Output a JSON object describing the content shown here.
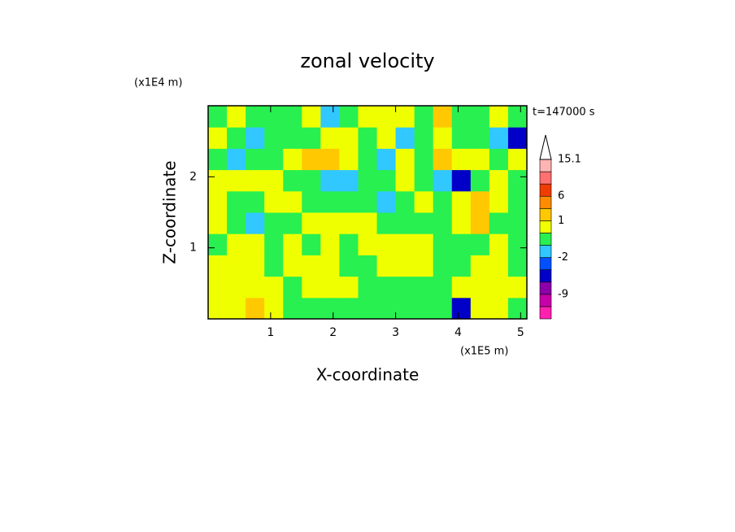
{
  "chart_data": {
    "type": "contour",
    "title": "zonal velocity",
    "x_label": "X-coordinate",
    "y_label": "Z-coordinate",
    "x_unit": "(x1E5 m)",
    "y_unit": "(x1E4 m)",
    "annotation": "t=147000 s",
    "xlim": [
      0,
      5.1
    ],
    "ylim": [
      0,
      3
    ],
    "xticks": [
      1,
      2,
      3,
      4,
      5
    ],
    "yticks": [
      1,
      2
    ],
    "field": {
      "x": [
        0.15,
        0.45,
        0.75,
        1.05,
        1.35,
        1.65,
        1.95,
        2.25,
        2.55,
        2.85,
        3.15,
        3.45,
        3.75,
        4.05,
        4.35,
        4.65,
        4.95
      ],
      "y": [
        0.15,
        0.45,
        0.75,
        1.05,
        1.35,
        1.65,
        1.95,
        2.25,
        2.55,
        2.85
      ],
      "values": [
        [
          0.5,
          0.5,
          1.5,
          0.5,
          -0.5,
          -0.5,
          -0.5,
          -0.5,
          -0.5,
          -0.5,
          -0.5,
          -0.5,
          -0.5,
          -4,
          0.5,
          0.5,
          -0.5
        ],
        [
          0.5,
          0.5,
          0.5,
          0.5,
          -0.5,
          0.5,
          0.5,
          0.5,
          -0.5,
          -0.5,
          -0.5,
          -0.5,
          -0.5,
          0.5,
          0.5,
          0.5,
          0.5
        ],
        [
          0.5,
          0.5,
          0.5,
          -0.5,
          0.5,
          0.5,
          0.5,
          -0.5,
          -0.5,
          0.5,
          0.5,
          0.5,
          -0.5,
          -0.5,
          0.5,
          0.5,
          -0.5
        ],
        [
          -0.5,
          0.5,
          0.5,
          -0.5,
          0.5,
          -0.5,
          0.5,
          -0.5,
          0.5,
          0.5,
          0.5,
          0.5,
          -0.5,
          -0.5,
          -0.5,
          0.5,
          -0.5
        ],
        [
          0.5,
          -0.5,
          -1.5,
          -0.5,
          -0.5,
          0.5,
          0.5,
          0.5,
          0.5,
          -0.5,
          -0.5,
          -0.5,
          -0.5,
          0.5,
          2,
          -0.5,
          -0.5
        ],
        [
          0.5,
          -0.5,
          -0.5,
          0.5,
          0.5,
          -0.5,
          -0.5,
          -0.5,
          -0.5,
          -1.5,
          -0.5,
          0.5,
          -0.5,
          0.5,
          2,
          0.5,
          -0.5
        ],
        [
          0.5,
          0.5,
          0.5,
          0.5,
          -0.5,
          -0.5,
          -1.5,
          -1.5,
          -0.5,
          -0.5,
          0.5,
          -0.5,
          -1.5,
          -4,
          -0.5,
          0.5,
          -0.5
        ],
        [
          -0.5,
          -1.5,
          -0.5,
          -0.5,
          0.5,
          2,
          2,
          0.5,
          -0.5,
          -1.5,
          0.5,
          -0.5,
          2,
          0.5,
          0.5,
          -0.5,
          0.5
        ],
        [
          0.5,
          -0.5,
          -1.5,
          -0.5,
          -0.5,
          -0.5,
          0.5,
          0.5,
          -0.5,
          0.5,
          -1.5,
          -0.5,
          0.5,
          -0.5,
          -0.5,
          -1.5,
          -4
        ],
        [
          -0.5,
          0.5,
          -0.5,
          -0.5,
          -0.5,
          0.5,
          -1.5,
          -0.5,
          0.5,
          0.5,
          0.5,
          -0.5,
          2,
          -0.5,
          -0.5,
          0.5,
          -0.5
        ]
      ]
    },
    "levels": [
      -15,
      -12,
      -9,
      -6,
      -3,
      -2,
      -1,
      0,
      1,
      3,
      6,
      9,
      12,
      15.1
    ],
    "level_colors": [
      "#ff20b0",
      "#c800aa",
      "#8c00aa",
      "#0000c8",
      "#0050ff",
      "#30c8ff",
      "#28f050",
      "#f0ff00",
      "#ffc800",
      "#ff8c00",
      "#f03c00",
      "#ff7070",
      "#ffb4b4"
    ],
    "colorbar_ticks": [
      -9,
      -2,
      1,
      6,
      15.1
    ]
  }
}
